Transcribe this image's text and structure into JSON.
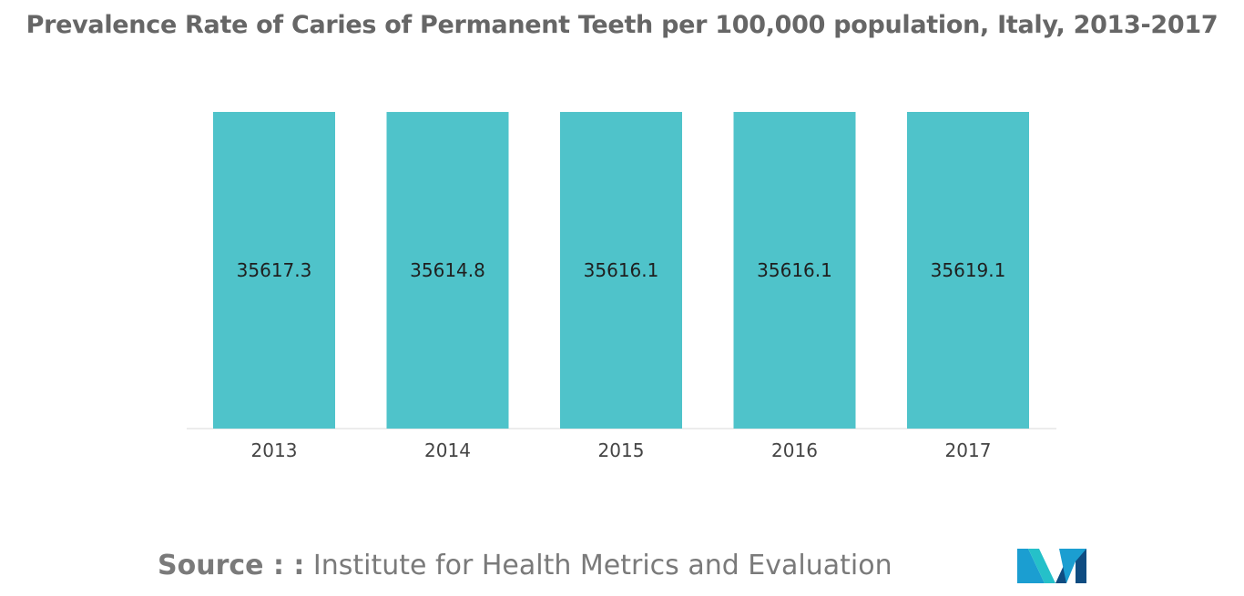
{
  "chart_data": {
    "type": "bar",
    "title": "Prevalence Rate of Caries of Permanent Teeth per 100,000 population, Italy, 2013-2017",
    "categories": [
      "2013",
      "2014",
      "2015",
      "2016",
      "2017"
    ],
    "values": [
      35617.3,
      35614.8,
      35616.1,
      35616.1,
      35619.1
    ],
    "value_labels": [
      "35617.3",
      "35614.8",
      "35616.1",
      "35616.1",
      "35619.1"
    ],
    "xlabel": "",
    "ylabel": "",
    "y_axis_visible": false,
    "ylim": [
      0,
      35619.1
    ],
    "grid": false,
    "legend": "none",
    "bar_color": "#4fc3ca",
    "value_label_position": "center"
  },
  "source": {
    "prefix": "Source : :",
    "text": " Institute for Health Metrics and Evaluation"
  },
  "logo": {
    "icon": "mordor-intelligence-logo",
    "colors": [
      "#1b9ed1",
      "#25c0c9",
      "#0f4c81"
    ]
  },
  "colors": {
    "title": "#666666",
    "source": "#7a7a7a",
    "axis_line": "#d9d9d9"
  }
}
